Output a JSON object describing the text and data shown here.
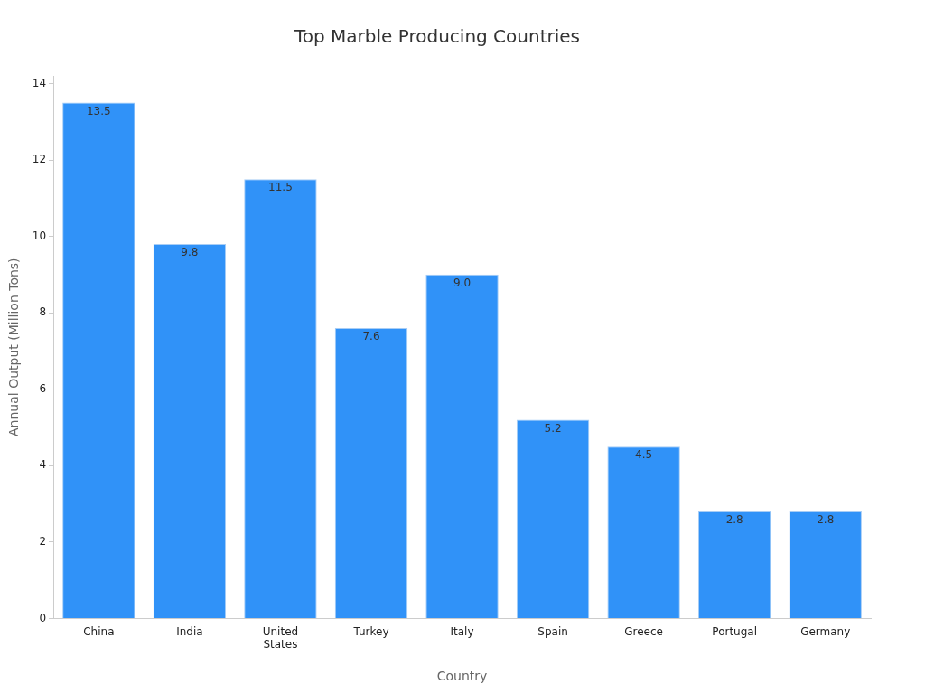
{
  "chart_data": {
    "type": "bar",
    "title": "Top Marble Producing Countries",
    "xlabel": "Country",
    "ylabel": "Annual Output (Million Tons)",
    "categories": [
      "China",
      "India",
      "United States",
      "Turkey",
      "Italy",
      "Spain",
      "Greece",
      "Portugal",
      "Germany"
    ],
    "values": [
      13.5,
      9.8,
      11.5,
      7.6,
      9.0,
      5.2,
      4.5,
      2.8,
      2.8
    ],
    "value_labels": [
      "13.5",
      "9.8",
      "11.5",
      "7.6",
      "9.0",
      "5.2",
      "4.5",
      "2.8",
      "2.8"
    ],
    "color": "#3092f8",
    "ylim": [
      0,
      14.2
    ],
    "yticks": [
      0,
      2,
      4,
      6,
      8,
      10,
      12,
      14
    ],
    "grid": false,
    "legend": false
  }
}
